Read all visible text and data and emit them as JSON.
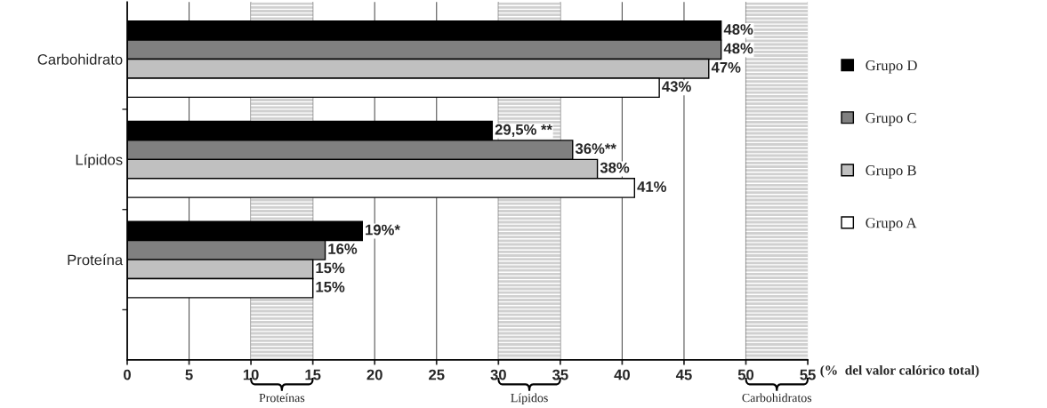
{
  "chart_data": {
    "type": "bar",
    "orientation": "horizontal",
    "categories": [
      "Carbohidrato",
      "Lípidos",
      "Proteína"
    ],
    "series": [
      {
        "name": "Grupo D",
        "color": "#000000",
        "values": [
          48,
          29.5,
          19
        ],
        "value_labels": [
          "48%",
          "29,5% **",
          "19%*"
        ]
      },
      {
        "name": "Grupo C",
        "color": "#808080",
        "values": [
          48,
          36,
          16
        ],
        "value_labels": [
          "48%",
          "36%**",
          "16%"
        ]
      },
      {
        "name": "Grupo B",
        "color": "#c0c0c0",
        "values": [
          47,
          38,
          15
        ],
        "value_labels": [
          "47%",
          "38%",
          "15%"
        ]
      },
      {
        "name": "Grupo A",
        "color": "#ffffff",
        "values": [
          43,
          41,
          15
        ],
        "value_labels": [
          "43%",
          "41%",
          "15%"
        ]
      }
    ],
    "xlim": [
      0,
      55
    ],
    "xticks": [
      0,
      5,
      10,
      15,
      20,
      25,
      30,
      35,
      40,
      45,
      50,
      55
    ],
    "xlabel": "(%  del valor calórico total)",
    "bands": [
      {
        "axis": "x",
        "from": 10,
        "to": 15,
        "label": "Proteínas",
        "color": "#d0d0d0"
      },
      {
        "axis": "x",
        "from": 30,
        "to": 35,
        "label": "Lípidos",
        "color": "#d0d0d0"
      },
      {
        "axis": "x",
        "from": 50,
        "to": 55,
        "label": "Carbohidratos",
        "color": "#d0d0d0"
      }
    ],
    "grid": "x",
    "legend": "right"
  }
}
